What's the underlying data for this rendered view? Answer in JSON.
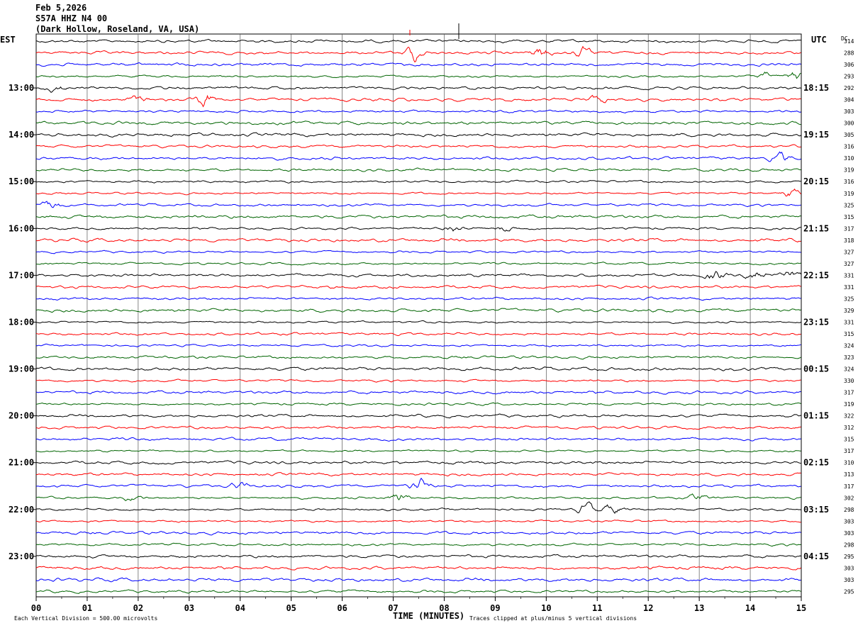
{
  "header": {
    "date": "Feb 5,2026",
    "station": "S57A HHZ N4 00",
    "location": "(Dark Hollow, Roseland, VA, USA)"
  },
  "left_tz": "EST",
  "right_tz": "UTC",
  "dc_label": "DC",
  "footer": {
    "scale": "Each Vertical Division =  500.00 microvolts",
    "xlabel": "TIME (MINUTES)",
    "clip": "Traces clipped at plus/minus 5 vertical divisions"
  },
  "colors": [
    "#000000",
    "#ff0000",
    "#0000ff",
    "#006400"
  ],
  "chart_data": {
    "type": "line",
    "xlabel": "TIME (MINUTES)",
    "xlim": [
      0,
      15
    ],
    "x_ticks": [
      "00",
      "01",
      "02",
      "03",
      "04",
      "05",
      "06",
      "07",
      "08",
      "09",
      "10",
      "11",
      "12",
      "13",
      "14",
      "15"
    ],
    "trace_minutes": 15,
    "trace_count": 48,
    "left_hour_labels": [
      "13:00",
      "14:00",
      "15:00",
      "16:00",
      "17:00",
      "18:00",
      "19:00",
      "20:00",
      "21:00",
      "22:00",
      "23:00"
    ],
    "right_hour_labels": [
      "18:15",
      "19:15",
      "20:15",
      "21:15",
      "22:15",
      "23:15",
      "00:15",
      "01:15",
      "02:15",
      "03:15",
      "04:15"
    ],
    "first_labeled_trace": 4,
    "dc_offsets": [
      314,
      288,
      306,
      293,
      292,
      304,
      303,
      300,
      305,
      316,
      310,
      319,
      316,
      319,
      325,
      315,
      317,
      318,
      327,
      327,
      331,
      331,
      325,
      329,
      331,
      315,
      324,
      323,
      324,
      330,
      317,
      319,
      322,
      312,
      315,
      317,
      310,
      313,
      317,
      302,
      298,
      303,
      303,
      298,
      295,
      303,
      303,
      295
    ],
    "events": [
      {
        "trace": 1,
        "minute": 7.4,
        "amp": 3.0
      },
      {
        "trace": 1,
        "minute": 9.9,
        "amp": 2.6
      },
      {
        "trace": 1,
        "minute": 10.7,
        "amp": 1.6
      },
      {
        "trace": 3,
        "minute": 14.9,
        "amp": 2.2
      },
      {
        "trace": 3,
        "minute": 14.3,
        "amp": 1.4
      },
      {
        "trace": 4,
        "minute": 0.4,
        "amp": 1.4
      },
      {
        "trace": 5,
        "minute": 3.3,
        "amp": 3.0
      },
      {
        "trace": 5,
        "minute": 2.0,
        "amp": 1.3
      },
      {
        "trace": 5,
        "minute": 11.0,
        "amp": 1.3
      },
      {
        "trace": 10,
        "minute": 14.6,
        "amp": 1.8
      },
      {
        "trace": 13,
        "minute": 14.8,
        "amp": 2.0
      },
      {
        "trace": 14,
        "minute": 0.3,
        "amp": 2.0
      },
      {
        "trace": 16,
        "minute": 8.2,
        "amp": 1.8
      },
      {
        "trace": 16,
        "minute": 9.2,
        "amp": 1.3
      },
      {
        "trace": 20,
        "minute": 14.1,
        "amp": 3.2
      },
      {
        "trace": 20,
        "minute": 13.3,
        "amp": 2.0
      },
      {
        "trace": 20,
        "minute": 14.8,
        "amp": 1.4
      },
      {
        "trace": 38,
        "minute": 7.5,
        "amp": 2.6
      },
      {
        "trace": 38,
        "minute": 4.0,
        "amp": 1.3
      },
      {
        "trace": 39,
        "minute": 7.1,
        "amp": 2.4
      },
      {
        "trace": 39,
        "minute": 1.9,
        "amp": 1.2
      },
      {
        "trace": 39,
        "minute": 13.0,
        "amp": 1.5
      },
      {
        "trace": 40,
        "minute": 10.8,
        "amp": 2.2
      },
      {
        "trace": 40,
        "minute": 11.3,
        "amp": 2.0
      }
    ]
  }
}
